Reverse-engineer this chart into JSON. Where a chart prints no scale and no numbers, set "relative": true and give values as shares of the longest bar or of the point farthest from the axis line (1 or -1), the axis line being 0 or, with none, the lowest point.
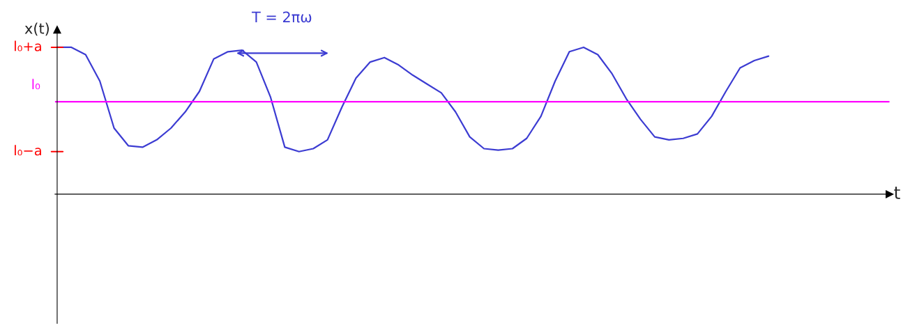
{
  "chart_data": {
    "type": "line",
    "ylabel": "x(t)",
    "relative": true,
    "annotations": [
      "T = 2πω",
      "l₀+a",
      "l₀−a",
      "t"
    ],
    "grid": false,
    "marker": "none",
    "line_style": "solid",
    "ref_lines": [
      {
        "axis": "y",
        "value": 0.63,
        "label": "l₀",
        "color": "#ff00ff"
      }
    ],
    "categories": [
      null,
      null,
      null,
      null,
      null,
      null,
      null,
      null,
      null,
      null,
      null,
      null,
      null,
      null,
      null,
      null,
      null,
      null,
      null,
      null,
      null,
      null,
      null,
      null,
      null,
      null,
      null,
      null,
      null,
      null,
      null,
      null,
      null,
      null,
      null,
      null,
      null,
      null,
      null,
      null,
      null,
      null,
      null,
      null,
      null,
      null,
      null,
      null,
      null,
      null,
      null
    ],
    "series": [
      {
        "color": "#3c3cd2",
        "values": [
          1.0,
          1.0,
          0.95,
          0.77,
          0.45,
          0.33,
          0.32,
          0.37,
          0.45,
          0.56,
          0.7,
          0.92,
          0.97,
          0.98,
          0.9,
          0.66,
          0.32,
          0.29,
          0.31,
          0.37,
          0.59,
          0.79,
          0.9,
          0.93,
          0.88,
          0.81,
          0.75,
          0.69,
          0.56,
          0.39,
          0.31,
          0.3,
          0.31,
          0.38,
          0.53,
          0.77,
          0.97,
          1.0,
          0.95,
          0.82,
          0.65,
          0.51,
          0.39,
          0.37,
          0.38,
          0.41,
          0.53,
          0.7,
          0.86,
          0.91,
          0.94
        ]
      }
    ]
  }
}
